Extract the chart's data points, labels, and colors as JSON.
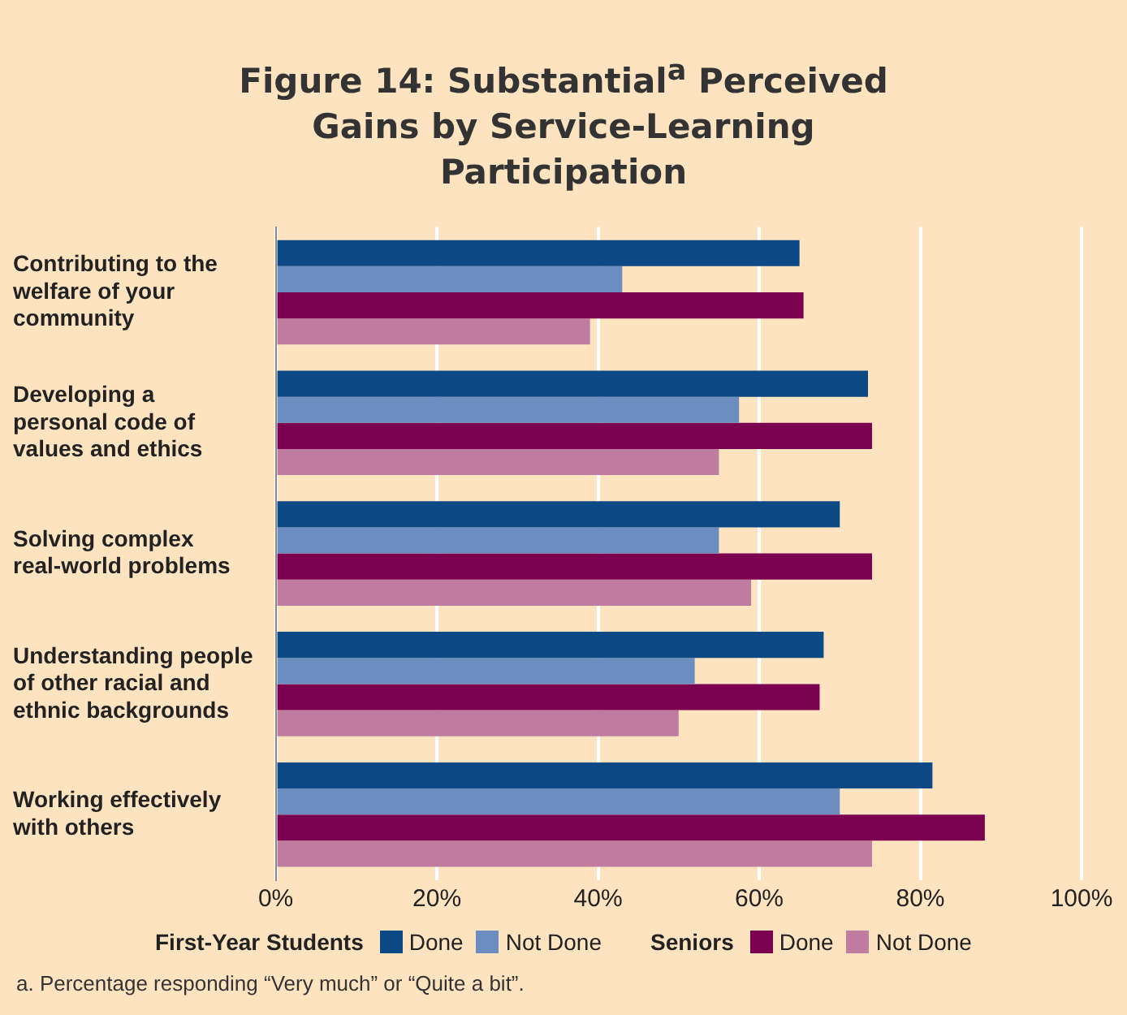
{
  "chart_data": {
    "type": "bar",
    "orientation": "horizontal",
    "title": "Figure 14: Substantial$^{a}$ Perceived Gains by Service-Learning Participation",
    "categories": [
      "Contributing to the welfare of your community",
      "Developing a personal code of values and ethics",
      "Solving complex real-world problems",
      "Understanding people of other racial and ethnic backgrounds",
      "Working effectively with others"
    ],
    "series": [
      {
        "name": "Done",
        "color": "#0d4a85",
        "values": [
          65,
          73.5,
          70,
          68,
          81.5
        ]
      },
      {
        "name": "Not Done",
        "color": "#6b8dbf",
        "values": [
          43,
          57.5,
          55,
          52,
          70
        ]
      },
      {
        "name": "Done",
        "color": "#7c0050",
        "values": [
          65.5,
          74,
          74,
          67.5,
          88
        ]
      },
      {
        "name": "Not Done",
        "color": "#c07ca0",
        "values": [
          39,
          55,
          59,
          50,
          74
        ]
      }
    ],
    "xlim": [
      0,
      100
    ],
    "xticks": [
      {
        "value": 0,
        "label": "0%"
      },
      {
        "value": 20,
        "label": "20%"
      },
      {
        "value": 40,
        "label": "40%"
      },
      {
        "value": 60,
        "label": "60%"
      },
      {
        "value": 80,
        "label": "80%"
      },
      {
        "value": 100,
        "label": "100%"
      }
    ],
    "grid": "x",
    "legend": "bottom",
    "annotations": [
      "First-Year Students",
      "Seniors",
      "a. Percentage responding “Very much” or “Quite a bit”."
    ]
  }
}
